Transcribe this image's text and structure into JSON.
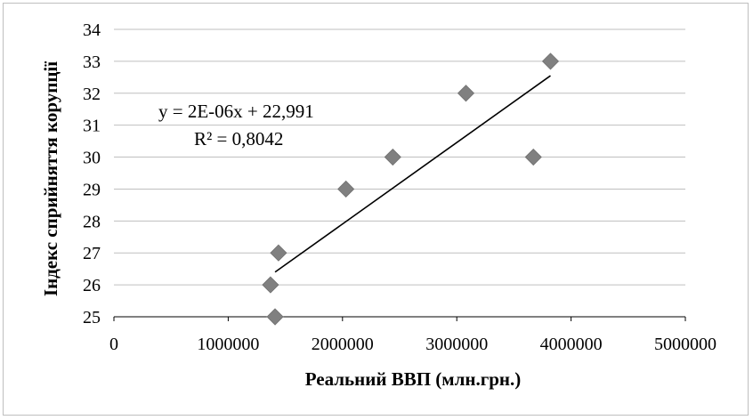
{
  "chart_data": {
    "type": "scatter",
    "xlabel": "Реальний ВВП (млн.грн.)",
    "ylabel": "Індекс сприйняття корупції",
    "xlim": [
      0,
      5000000
    ],
    "ylim": [
      25,
      34
    ],
    "x_ticks": [
      0,
      1000000,
      2000000,
      3000000,
      4000000,
      5000000
    ],
    "x_tick_labels": [
      "0",
      "1000000",
      "2000000",
      "3000000",
      "4000000",
      "5000000"
    ],
    "y_ticks": [
      25,
      26,
      27,
      28,
      29,
      30,
      31,
      32,
      33,
      34
    ],
    "y_tick_labels": [
      "25",
      "26",
      "27",
      "28",
      "29",
      "30",
      "31",
      "32",
      "33",
      "34"
    ],
    "grid": "horizontal",
    "legend": "none",
    "marker_color": "#808080",
    "series": [
      {
        "points": [
          {
            "x": 1370000,
            "y": 26
          },
          {
            "x": 1410000,
            "y": 25
          },
          {
            "x": 1440000,
            "y": 27
          },
          {
            "x": 2030000,
            "y": 29
          },
          {
            "x": 2440000,
            "y": 30
          },
          {
            "x": 3080000,
            "y": 32
          },
          {
            "x": 3670000,
            "y": 30
          },
          {
            "x": 3820000,
            "y": 33
          }
        ]
      }
    ],
    "trendline": {
      "type": "linear",
      "x_range": [
        1410000,
        3820000
      ],
      "y_range": [
        26.4,
        32.55
      ],
      "equation": "y = 2E-06x + 22,991",
      "r_squared": "R² = 0,8042"
    }
  }
}
